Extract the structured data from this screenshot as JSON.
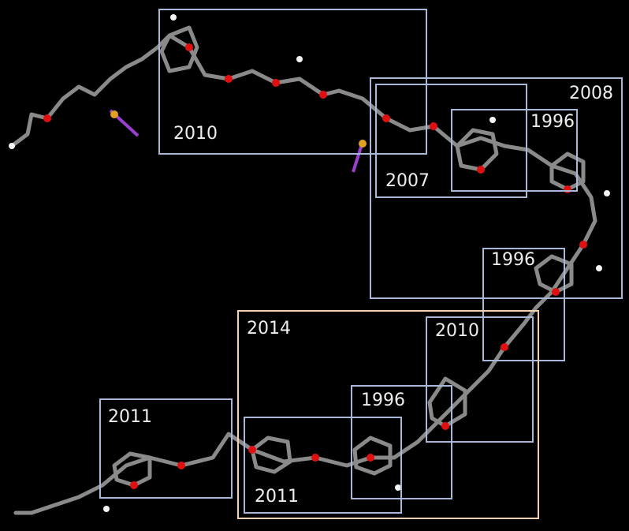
{
  "annotations": [
    "2010",
    "2008",
    "2007",
    "1996",
    "1996",
    "2014",
    "2010",
    "1996",
    "2011",
    "2011"
  ]
}
